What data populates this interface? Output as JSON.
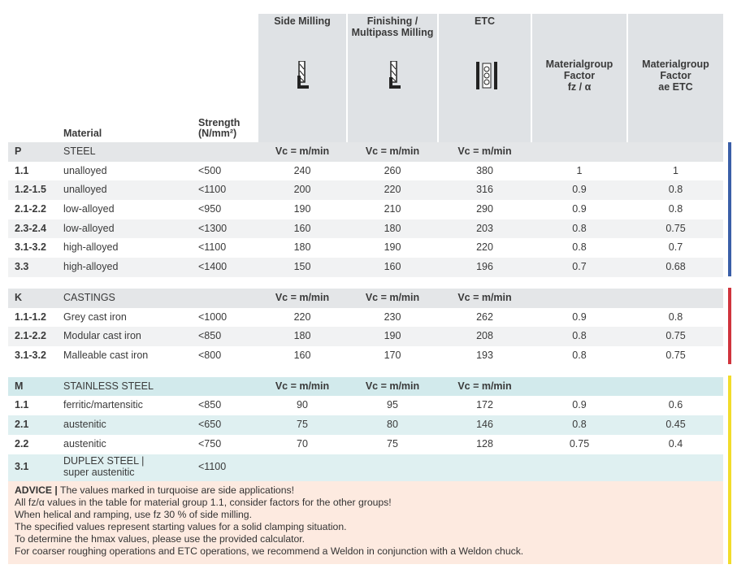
{
  "header": {
    "columns": [
      "Material",
      "Strength\n(N/mm²)",
      "Side Milling",
      "Finishing /\nMultipass Milling",
      "ETC",
      "Materialgroup\nFactor\nfz / α",
      "Materialgroup\nFactor\nae ETC"
    ]
  },
  "groups": [
    {
      "code": "P",
      "name": "STEEL",
      "units": [
        "Vc = m/min",
        "Vc = m/min",
        "Vc = m/min"
      ],
      "rows": [
        [
          "1.1",
          "unalloyed",
          "<500",
          240,
          260,
          380,
          1,
          1
        ],
        [
          "1.2-1.5",
          "unalloyed",
          "<1100",
          200,
          220,
          316,
          0.9,
          0.8
        ],
        [
          "2.1-2.2",
          "low-alloyed",
          "<950",
          190,
          210,
          290,
          0.9,
          0.8
        ],
        [
          "2.3-2.4",
          "low-alloyed",
          "<1300",
          160,
          180,
          203,
          0.8,
          0.75
        ],
        [
          "3.1-3.2",
          "high-alloyed",
          "<1100",
          180,
          190,
          220,
          0.8,
          0.7
        ],
        [
          "3.3",
          "high-alloyed",
          "<1400",
          150,
          160,
          196,
          0.7,
          0.68
        ]
      ]
    },
    {
      "code": "K",
      "name": "CASTINGS",
      "units": [
        "Vc = m/min",
        "Vc = m/min",
        "Vc = m/min"
      ],
      "rows": [
        [
          "1.1-1.2",
          "Grey cast iron",
          "<1000",
          220,
          230,
          262,
          0.9,
          0.8
        ],
        [
          "2.1-2.2",
          "Modular cast iron",
          "<850",
          180,
          190,
          208,
          0.8,
          0.75
        ],
        [
          "3.1-3.2",
          "Malleable cast iron",
          "<800",
          160,
          170,
          193,
          0.8,
          0.75
        ]
      ]
    },
    {
      "code": "M",
      "name": "STAINLESS STEEL",
      "units": [
        "Vc = m/min",
        "Vc = m/min",
        "Vc = m/min"
      ],
      "rows": [
        [
          "1.1",
          "ferritic/martensitic",
          "<850",
          90,
          95,
          172,
          0.9,
          0.6
        ],
        [
          "2.1",
          "austenitic",
          "<650",
          75,
          80,
          146,
          0.8,
          0.45
        ],
        [
          "2.2",
          "austenitic",
          "<750",
          70,
          75,
          128,
          0.75,
          0.4
        ],
        [
          "3.1",
          "DUPLEX STEEL |\nsuper austenitic",
          "<1100"
        ]
      ]
    }
  ],
  "advice": {
    "label": "ADVICE |",
    "lines": [
      "The values marked in turquoise are side applications!",
      "All fz/α values in the table for material group 1.1, consider factors for the other groups!",
      "When helical and ramping, use fz 30 % of side milling.",
      "The specified values represent starting values for a solid clamping situation.",
      "To determine the hmax values, please use the provided calculator.",
      "For coarser roughing operations and ETC operations, we recommend a Weldon in conjunction with a Weldon chuck."
    ]
  }
}
